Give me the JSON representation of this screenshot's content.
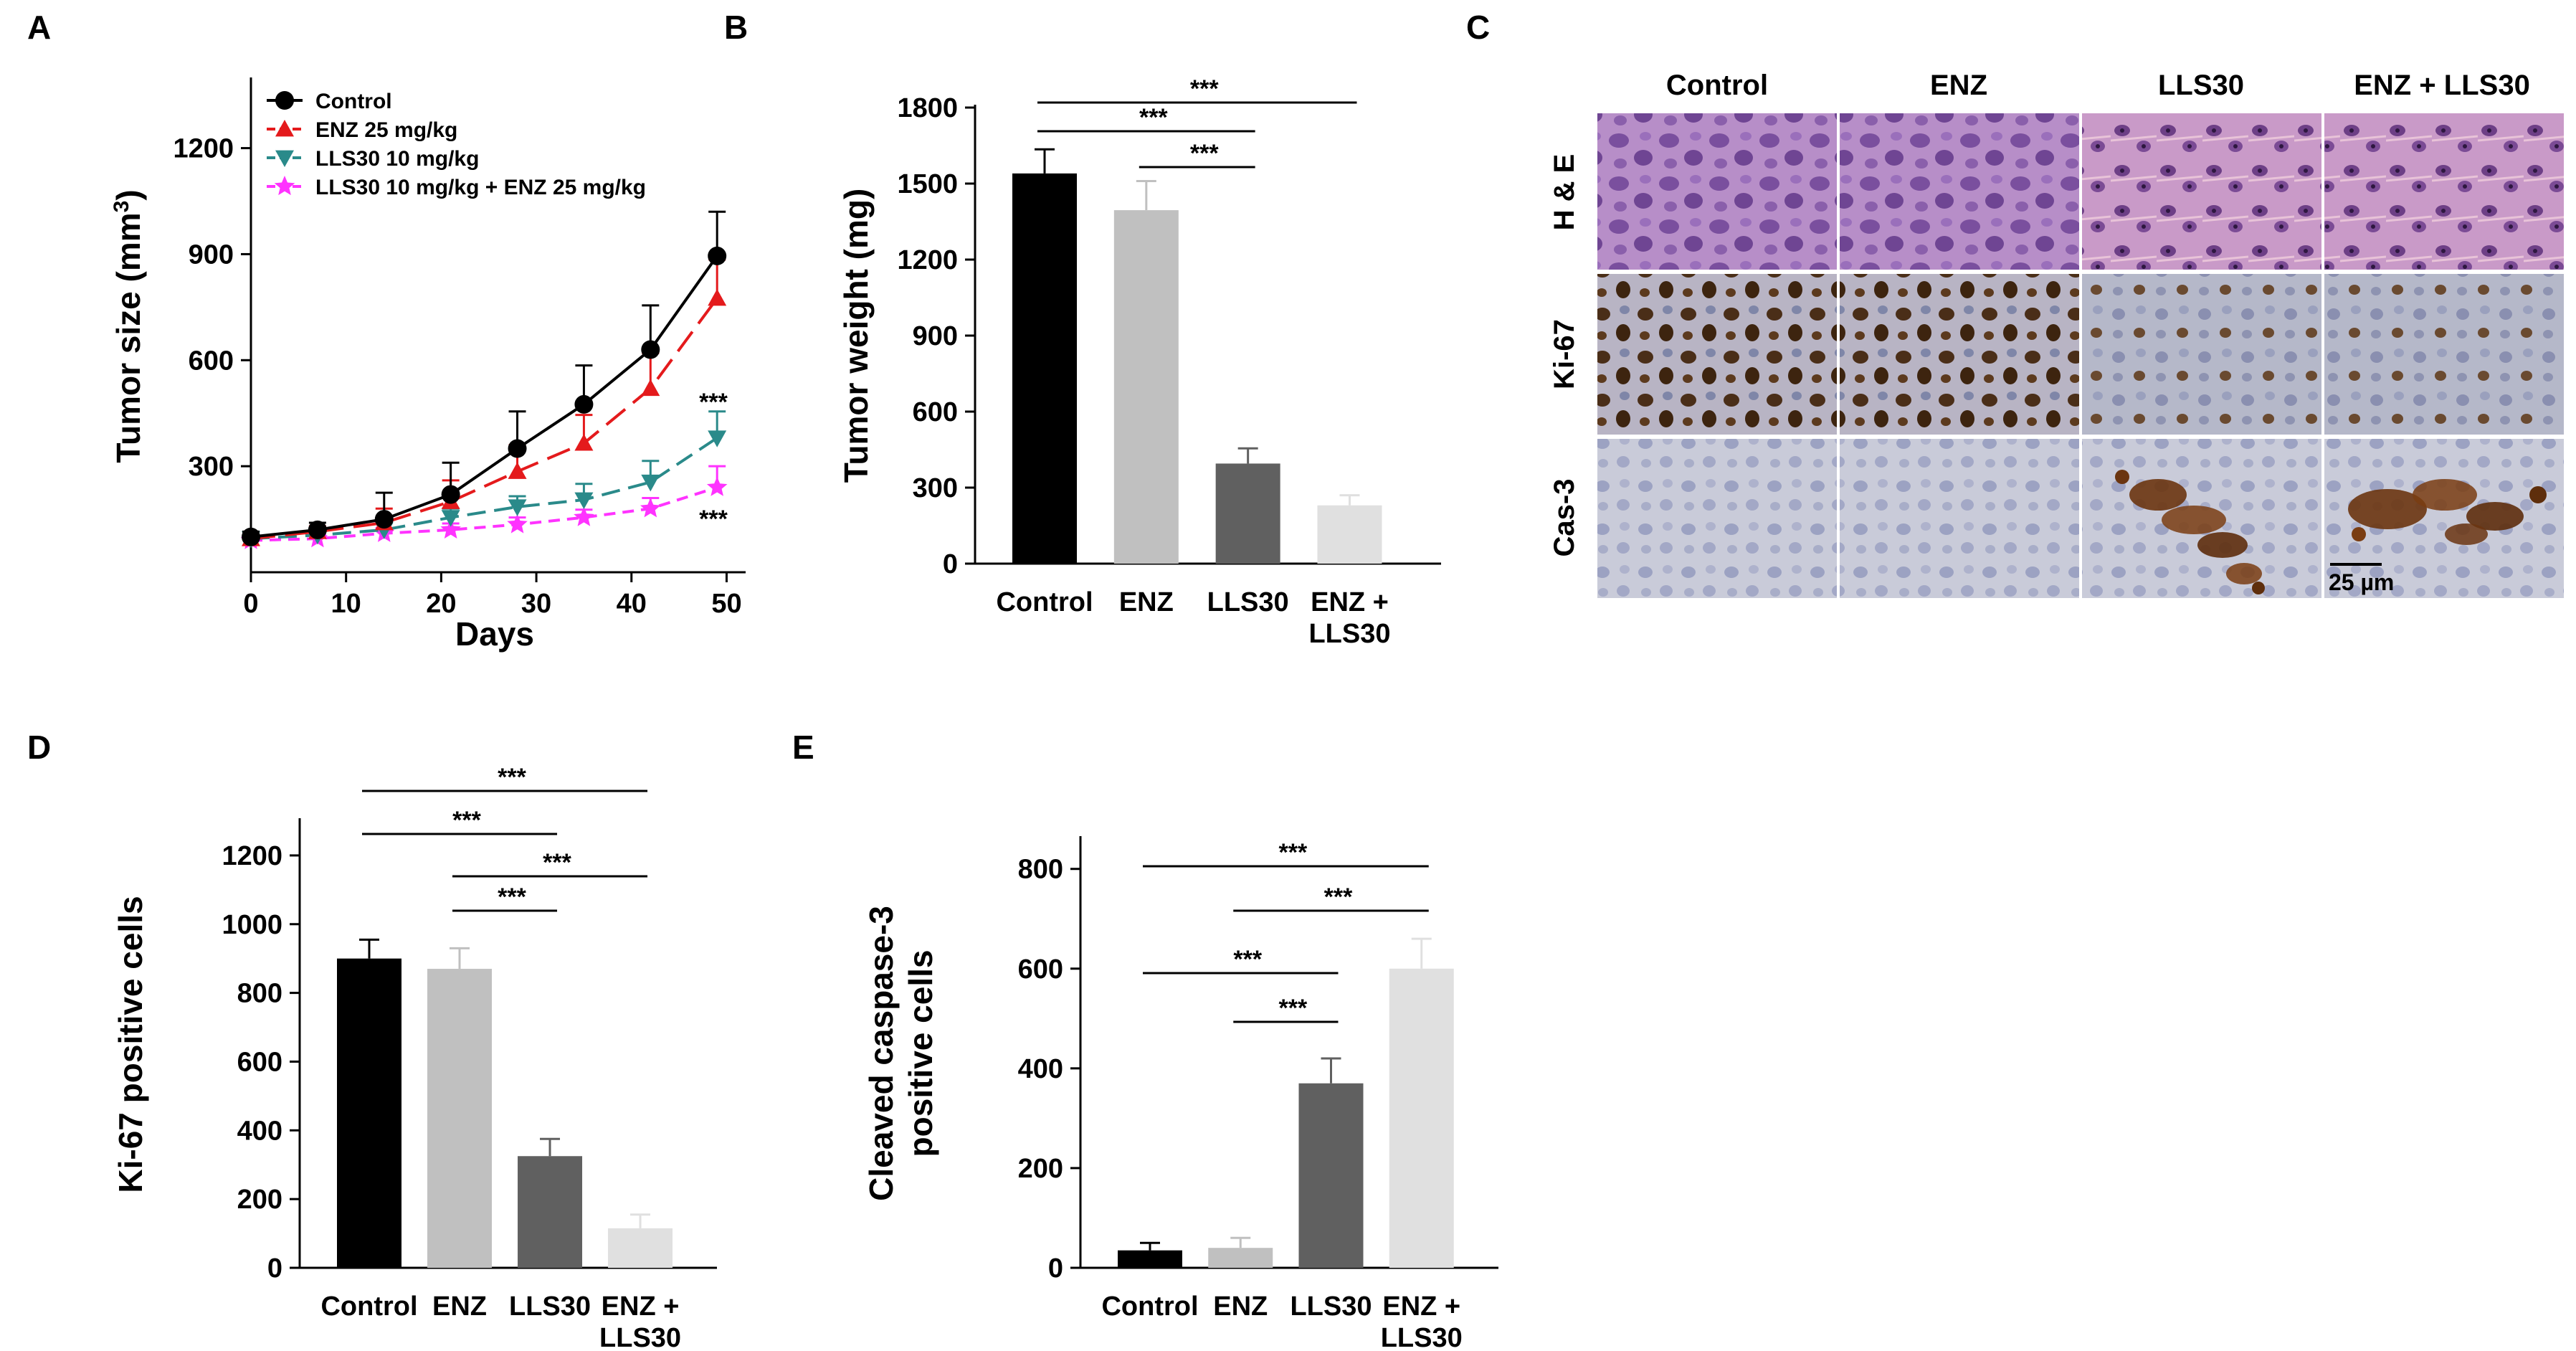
{
  "panel_labels": [
    "A",
    "B",
    "C",
    "D",
    "E"
  ],
  "colors": {
    "control": "#000000",
    "enz": "#e41a1c",
    "lls30": "#2a8a8a",
    "combo": "#ff33ff",
    "bar_control": "#000000",
    "bar_enz": "#c0c0c0",
    "bar_lls30": "#606060",
    "bar_combo": "#e0e0e0"
  },
  "chart_data": [
    {
      "id": "A",
      "type": "line",
      "xlabel": "Days",
      "ylabel": "Tumor size (mm",
      "ylabel_sup": "3",
      "ylabel_close": ")",
      "xlim": [
        0,
        52
      ],
      "ylim": [
        0,
        1400
      ],
      "xticks": [
        0,
        10,
        20,
        30,
        40,
        50
      ],
      "yticks": [
        300,
        600,
        900,
        1200
      ],
      "x": [
        0,
        7,
        14,
        21,
        28,
        35,
        42,
        49
      ],
      "legend_position": "top-left",
      "series": [
        {
          "name": "Control",
          "values": [
            100,
            120,
            150,
            220,
            350,
            475,
            630,
            895
          ],
          "err": [
            15,
            20,
            75,
            90,
            105,
            110,
            125,
            125
          ],
          "marker": "circle"
        },
        {
          "name": "ENZ    25 mg/kg",
          "values": [
            95,
            115,
            140,
            200,
            285,
            365,
            520,
            775
          ],
          "err": [
            10,
            15,
            40,
            60,
            75,
            80,
            100,
            110
          ],
          "marker": "triangle-up"
        },
        {
          "name": "LLS30 10 mg/kg",
          "values": [
            95,
            105,
            120,
            155,
            185,
            205,
            255,
            380
          ],
          "err": [
            10,
            12,
            25,
            25,
            30,
            45,
            60,
            75
          ],
          "marker": "triangle-down"
        },
        {
          "name": "LLS30 10 mg/kg + ENZ 25 mg/kg",
          "values": [
            90,
            95,
            110,
            120,
            135,
            155,
            180,
            240
          ],
          "err": [
            10,
            10,
            15,
            18,
            20,
            22,
            30,
            60
          ],
          "marker": "star"
        }
      ],
      "annotations": [
        "***",
        "***"
      ]
    },
    {
      "id": "B",
      "type": "bar",
      "ylabel": "Tumor weight (mg)",
      "ylim": [
        0,
        1800
      ],
      "yticks": [
        0,
        300,
        600,
        900,
        1200,
        1500,
        1800
      ],
      "categories": [
        "Control",
        "ENZ",
        "LLS30",
        "ENZ +\nLLS30"
      ],
      "values": [
        1540,
        1395,
        395,
        230
      ],
      "err": [
        95,
        115,
        60,
        40
      ],
      "significance": [
        {
          "from": 0,
          "to": 3,
          "label": "***"
        },
        {
          "from": 0,
          "to": 2,
          "label": "***"
        },
        {
          "from": 1,
          "to": 2,
          "label": "***"
        }
      ]
    },
    {
      "id": "D",
      "type": "bar",
      "ylabel": "Ki-67 positive cells",
      "ylim": [
        0,
        1300
      ],
      "yticks": [
        0,
        200,
        400,
        600,
        800,
        1000,
        1200
      ],
      "categories": [
        "Control",
        "ENZ",
        "LLS30",
        "ENZ +\nLLS30"
      ],
      "values": [
        900,
        870,
        325,
        115
      ],
      "err": [
        55,
        60,
        50,
        40
      ],
      "significance": [
        {
          "from": 0,
          "to": 3,
          "label": "***"
        },
        {
          "from": 0,
          "to": 2,
          "label": "***"
        },
        {
          "from": 1,
          "to": 3,
          "label": "***"
        },
        {
          "from": 1,
          "to": 2,
          "label": "***"
        }
      ]
    },
    {
      "id": "E",
      "type": "bar",
      "ylabel": "Cleaved caspase-3",
      "ylabel2": "positive cells",
      "ylim": [
        0,
        860
      ],
      "yticks": [
        0,
        200,
        400,
        600,
        800
      ],
      "categories": [
        "Control",
        "ENZ",
        "LLS30",
        "ENZ +\nLLS30"
      ],
      "values": [
        35,
        40,
        370,
        600
      ],
      "err": [
        15,
        20,
        50,
        60
      ],
      "significance": [
        {
          "from": 0,
          "to": 3,
          "label": "***"
        },
        {
          "from": 1,
          "to": 3,
          "label": "***"
        },
        {
          "from": 0,
          "to": 2,
          "label": "***"
        },
        {
          "from": 1,
          "to": 2,
          "label": "***"
        }
      ]
    }
  ],
  "panel_C": {
    "columns": [
      "Control",
      "ENZ",
      "LLS30",
      "ENZ + LLS30"
    ],
    "rows": [
      "H & E",
      "Ki-67",
      "Cas-3"
    ],
    "scale_bar": "25 µm"
  }
}
